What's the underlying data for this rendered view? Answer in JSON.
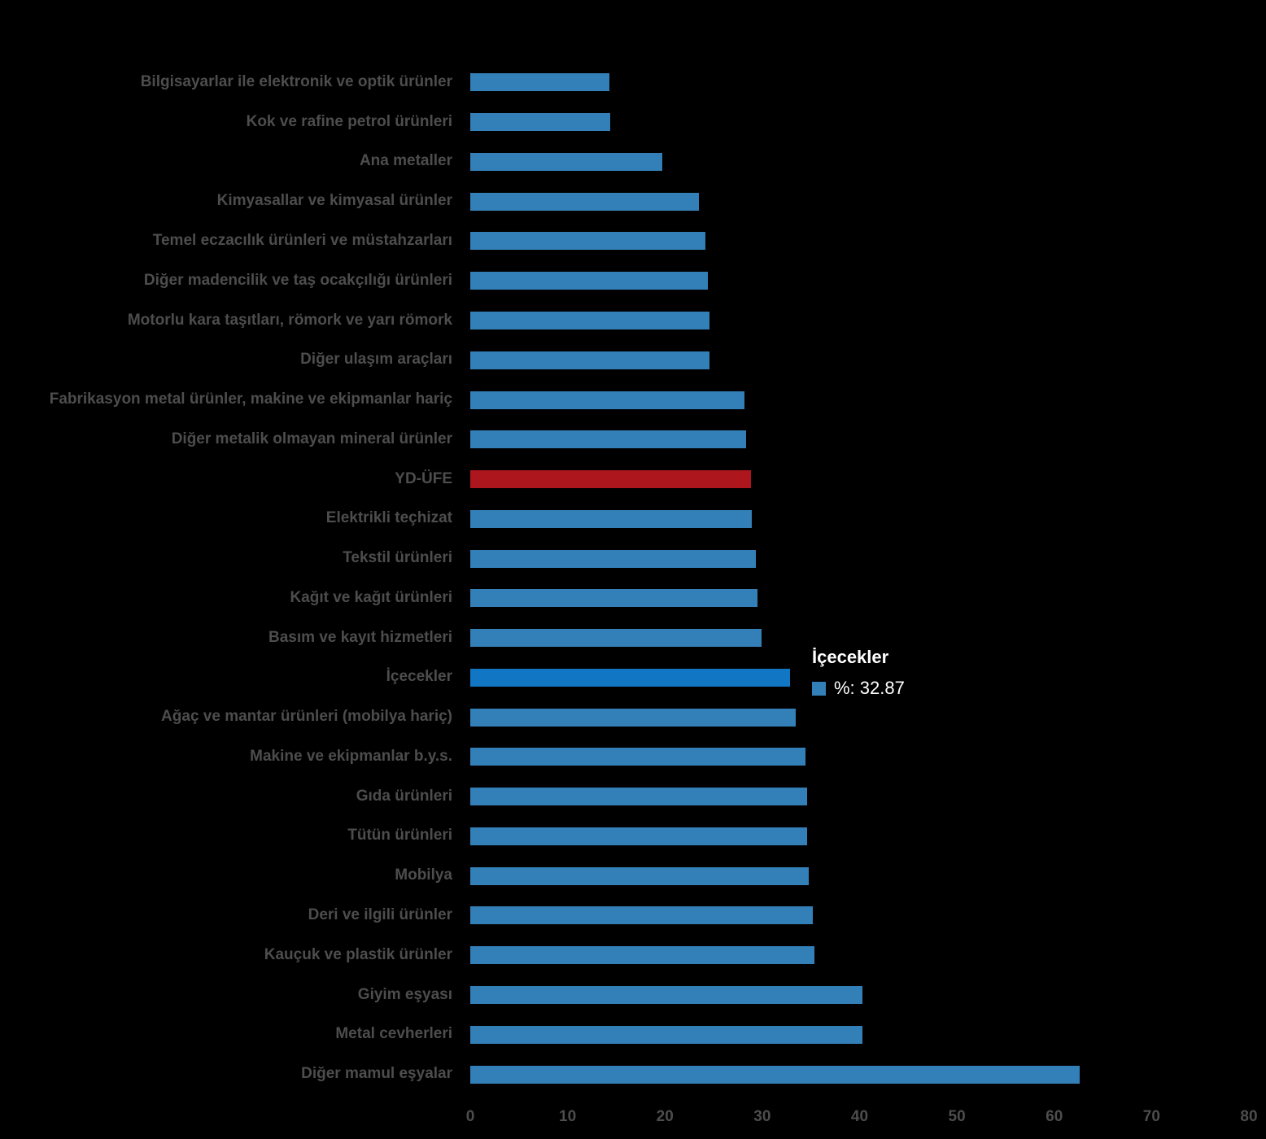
{
  "background_color": "#000000",
  "colors": {
    "bar_default": "#3380b8",
    "bar_highlight": "#1176c4",
    "bar_accent_red": "#ad161d",
    "label_text": "#4d4d4d",
    "tick_text": "#4d4d4d",
    "tooltip_text": "#ffffff"
  },
  "tooltip": {
    "title": "İçecekler",
    "value_text": "%: 32.87",
    "swatch_color": "#3380b8"
  },
  "chart_data": {
    "type": "bar",
    "orientation": "horizontal",
    "title": "",
    "xlabel": "",
    "ylabel": "",
    "xlim": [
      0,
      80
    ],
    "x_ticks": [
      0,
      10,
      20,
      30,
      40,
      50,
      60,
      70,
      80
    ],
    "value_unit": "%",
    "grid": false,
    "legend": false,
    "accent_category": "YD-ÜFE",
    "highlighted_category": "İçecekler",
    "bars": [
      {
        "category": "Bilgisayarlar ile elektronik ve optik ürünler",
        "value": 14.3,
        "variant": "default"
      },
      {
        "category": "Kok ve rafine petrol ürünleri",
        "value": 14.4,
        "variant": "default"
      },
      {
        "category": "Ana metaller",
        "value": 19.7,
        "variant": "default"
      },
      {
        "category": "Kimyasallar ve kimyasal ürünler",
        "value": 23.5,
        "variant": "default"
      },
      {
        "category": "Temel eczacılık ürünleri ve müstahzarları",
        "value": 24.2,
        "variant": "default"
      },
      {
        "category": "Diğer madencilik ve taş ocakçılığı ürünleri",
        "value": 24.4,
        "variant": "default"
      },
      {
        "category": "Motorlu kara taşıtları, römork ve yarı römork",
        "value": 24.6,
        "variant": "default"
      },
      {
        "category": "Diğer ulaşım araçları",
        "value": 24.6,
        "variant": "default"
      },
      {
        "category": "Fabrikasyon metal ürünler, makine ve ekipmanlar hariç",
        "value": 28.2,
        "variant": "default"
      },
      {
        "category": "Diğer metalik olmayan mineral ürünler",
        "value": 28.3,
        "variant": "default"
      },
      {
        "category": "YD-ÜFE",
        "value": 28.8,
        "variant": "accent"
      },
      {
        "category": "Elektrikli teçhizat",
        "value": 28.9,
        "variant": "default"
      },
      {
        "category": "Tekstil ürünleri",
        "value": 29.3,
        "variant": "default"
      },
      {
        "category": "Kağıt ve kağıt ürünleri",
        "value": 29.5,
        "variant": "default"
      },
      {
        "category": "Basım ve kayıt hizmetleri",
        "value": 29.9,
        "variant": "default"
      },
      {
        "category": "İçecekler",
        "value": 32.87,
        "variant": "highlight"
      },
      {
        "category": "Ağaç ve mantar ürünleri (mobilya hariç)",
        "value": 33.4,
        "variant": "default"
      },
      {
        "category": "Makine ve ekipmanlar b.y.s.",
        "value": 34.4,
        "variant": "default"
      },
      {
        "category": "Gıda ürünleri",
        "value": 34.6,
        "variant": "default"
      },
      {
        "category": "Tütün ürünleri",
        "value": 34.6,
        "variant": "default"
      },
      {
        "category": "Mobilya",
        "value": 34.8,
        "variant": "default"
      },
      {
        "category": "Deri ve ilgili ürünler",
        "value": 35.2,
        "variant": "default"
      },
      {
        "category": "Kauçuk ve plastik ürünler",
        "value": 35.4,
        "variant": "default"
      },
      {
        "category": "Giyim eşyası",
        "value": 40.3,
        "variant": "default"
      },
      {
        "category": "Metal cevherleri",
        "value": 40.3,
        "variant": "default"
      },
      {
        "category": "Diğer mamul eşyalar",
        "value": 62.6,
        "variant": "default"
      }
    ]
  }
}
